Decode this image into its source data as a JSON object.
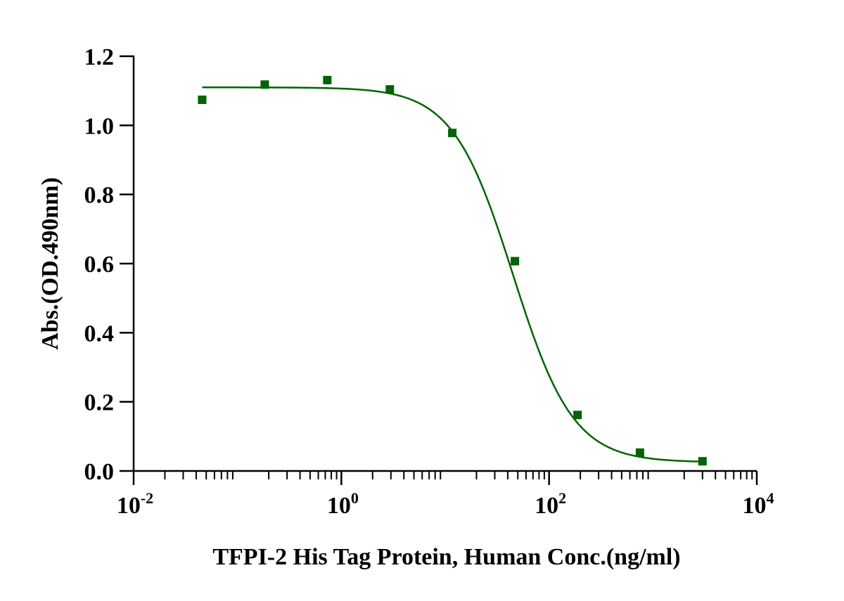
{
  "chart_data": {
    "type": "scatter",
    "title": "",
    "xlabel": "TFPI-2 His Tag Protein, Human Conc.(ng/ml)",
    "ylabel": "Abs.(OD.490nm)",
    "x_scale": "log10",
    "xlim": [
      0.01,
      10000
    ],
    "ylim": [
      0.0,
      1.2
    ],
    "x_ticks": [
      {
        "base": "10",
        "exp": "-2",
        "value": 0.01
      },
      {
        "base": "10",
        "exp": "0",
        "value": 1
      },
      {
        "base": "10",
        "exp": "2",
        "value": 100
      },
      {
        "base": "10",
        "exp": "4",
        "value": 10000
      }
    ],
    "y_ticks": [
      "0.0",
      "0.2",
      "0.4",
      "0.6",
      "0.8",
      "1.0",
      "1.2"
    ],
    "grid": false,
    "legend": "none",
    "color": "#006400",
    "series": [
      {
        "x": [
          0.0457,
          0.183,
          0.732,
          2.93,
          11.7,
          46.9,
          188,
          750,
          3000
        ],
        "y": [
          1.074,
          1.118,
          1.131,
          1.104,
          0.978,
          0.607,
          0.162,
          0.053,
          0.028
        ]
      }
    ],
    "fit": {
      "model": "4PL",
      "top": 1.11,
      "bottom": 0.025,
      "ec50": 45,
      "hill": 1.5
    }
  }
}
